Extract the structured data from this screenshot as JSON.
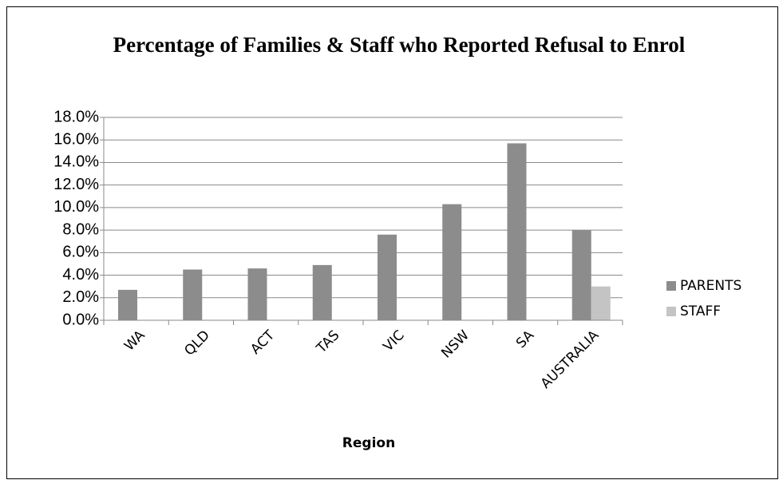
{
  "chart_data": {
    "type": "bar",
    "title": "Percentage of Families & Staff who Reported Refusal to Enrol",
    "x_label": "Region",
    "categories": [
      "WA",
      "QLD",
      "ACT",
      "TAS",
      "VIC",
      "NSW",
      "SA",
      "AUSTRALIA"
    ],
    "series": [
      {
        "name": "PARENTS",
        "color": "#8c8c8c",
        "values": [
          2.7,
          4.5,
          4.6,
          4.9,
          7.6,
          10.3,
          15.7,
          8.0
        ]
      },
      {
        "name": "STAFF",
        "color": "#c4c4c4",
        "values": [
          null,
          null,
          null,
          null,
          null,
          null,
          null,
          3.0
        ]
      }
    ],
    "ylim": [
      0,
      18
    ],
    "yticks": [
      {
        "value": 0,
        "label": "0.0%"
      },
      {
        "value": 2,
        "label": "2.0%"
      },
      {
        "value": 4,
        "label": "4.0%"
      },
      {
        "value": 6,
        "label": "6.0%"
      },
      {
        "value": 8,
        "label": "8.0%"
      },
      {
        "value": 10,
        "label": "10.0%"
      },
      {
        "value": 12,
        "label": "12.0%"
      },
      {
        "value": 14,
        "label": "14.0%"
      },
      {
        "value": 16,
        "label": "16.0%"
      },
      {
        "value": 18,
        "label": "18.0%"
      }
    ],
    "grid": true,
    "legend": "right"
  }
}
